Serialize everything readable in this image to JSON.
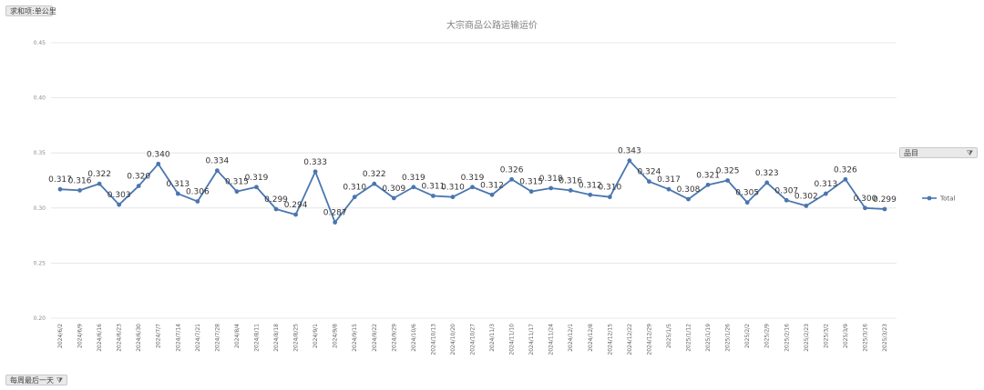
{
  "pivot": {
    "values_button": "求和项:单公里",
    "date_button": "每周最后一天",
    "series_button": "品目"
  },
  "colors": {
    "line": "#4a76b0",
    "grid": "#e0e0e0"
  },
  "chart_data": {
    "type": "line",
    "title": "大宗商品公路运输运价",
    "xlabel": "",
    "ylabel": "",
    "ylim": [
      0.2,
      0.45
    ],
    "yticks": [
      "0.20",
      "0.25",
      "0.30",
      "0.35",
      "0.40",
      "0.45"
    ],
    "grid": true,
    "legend_position": "right",
    "categories": [
      "2024/6/2",
      "2024/6/9",
      "2024/6/16",
      "2024/6/23",
      "2024/6/30",
      "2024/7/7",
      "2024/7/14",
      "2024/7/21",
      "2024/7/28",
      "2024/8/4",
      "2024/8/11",
      "2024/8/18",
      "2024/8/25",
      "2024/9/1",
      "2024/9/8",
      "2024/9/15",
      "2024/9/22",
      "2024/9/29",
      "2024/10/6",
      "2024/10/13",
      "2024/10/20",
      "2024/10/27",
      "2024/11/3",
      "2024/11/10",
      "2024/11/17",
      "2024/11/24",
      "2024/12/1",
      "2024/12/8",
      "2024/12/15",
      "2024/12/22",
      "2024/12/29",
      "2025/1/5",
      "2025/1/12",
      "2025/1/19",
      "2025/1/26",
      "2025/2/2",
      "2025/2/9",
      "2025/2/16",
      "2025/2/23",
      "2025/3/2",
      "2025/3/9",
      "2025/3/16",
      "2025/3/23"
    ],
    "series": [
      {
        "name": "Total",
        "labels": [
          "0.317",
          "0.316",
          "0.322",
          "0.303",
          "0.320",
          "0.340",
          "0.313",
          "0.306",
          "0.334",
          "0.315",
          "0.319",
          "0.299",
          "0.294",
          "0.333",
          "0.287",
          "0.310",
          "0.322",
          "0.309",
          "0.319",
          "0.311",
          "0.310",
          "0.319",
          "0.312",
          "0.326",
          "0.315",
          "0.318",
          "0.316",
          "0.312",
          "0.310",
          "0.343",
          "0.324",
          "0.317",
          "0.308",
          "0.321",
          "0.325",
          "0.305",
          "0.323",
          "0.307",
          "0.302",
          "0.313",
          "0.326",
          "0.300",
          "0.299"
        ],
        "values": [
          0.317,
          0.316,
          0.322,
          0.303,
          0.32,
          0.34,
          0.313,
          0.306,
          0.334,
          0.315,
          0.319,
          0.299,
          0.294,
          0.333,
          0.287,
          0.31,
          0.322,
          0.309,
          0.319,
          0.311,
          0.31,
          0.319,
          0.312,
          0.326,
          0.315,
          0.318,
          0.316,
          0.312,
          0.31,
          0.343,
          0.324,
          0.317,
          0.308,
          0.321,
          0.325,
          0.305,
          0.323,
          0.307,
          0.302,
          0.313,
          0.326,
          0.3,
          0.299
        ]
      }
    ]
  }
}
